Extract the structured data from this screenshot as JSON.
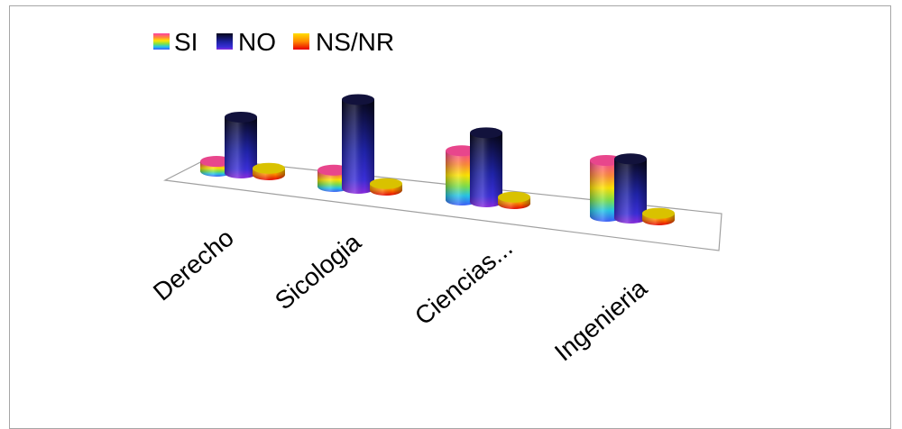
{
  "chart_data": {
    "type": "bar",
    "categories": [
      "Derecho",
      "Sicologia",
      "Ciencias...",
      "Ingenieria"
    ],
    "series": [
      {
        "name": "SI",
        "values": [
          3,
          5,
          15,
          17
        ],
        "fill": "rainbow-pink"
      },
      {
        "name": "NO",
        "values": [
          17,
          27,
          21,
          18
        ],
        "fill": "navy-blue"
      },
      {
        "name": "NS/NR",
        "values": [
          2,
          2,
          2,
          2
        ],
        "fill": "yellow-red"
      }
    ],
    "colors": {
      "si_top": "#e8468c",
      "no_top": "#12123c",
      "nsnr_top": "#d9c200",
      "floor_border": "#a0a0a0"
    },
    "legend_position": "top-left",
    "grid": false
  }
}
